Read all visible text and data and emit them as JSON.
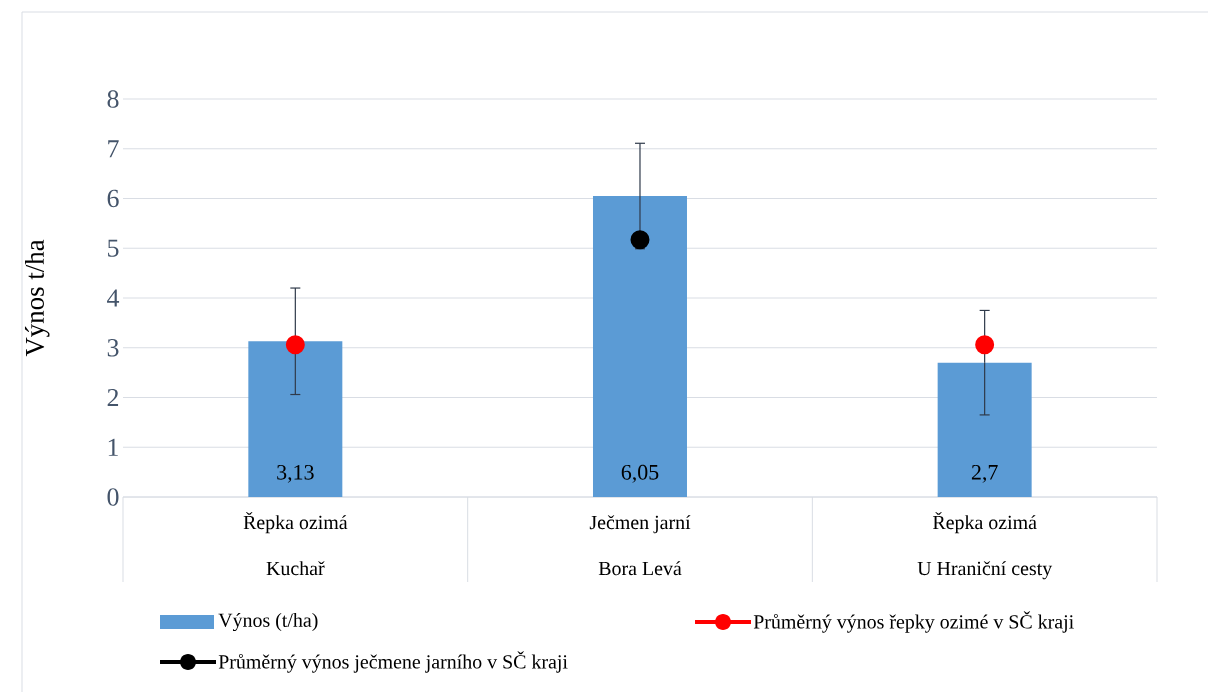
{
  "chart_data": {
    "type": "bar",
    "ylabel": "Výnos t/ha",
    "categories": [
      "Řepka ozimá",
      "Ječmen jarní",
      "Řepka ozimá"
    ],
    "annotations": [
      "Kuchař",
      "Bora Levá",
      "U Hraniční cesty"
    ],
    "series": [
      {
        "name": "Výnos (t/ha)",
        "color": "#5b9bd5",
        "values": [
          3.13,
          6.05,
          2.7
        ],
        "errors": [
          1.07,
          1.06,
          1.05
        ],
        "value_labels": [
          "3,13",
          "6,05",
          "2,7"
        ]
      },
      {
        "name": "Průměrný výnos řepky ozimé v SČ kraji",
        "type": "scatter",
        "color": "#ff0000",
        "values": [
          3.06,
          null,
          3.06
        ]
      },
      {
        "name": "Průměrný výnos ječmene jarního v SČ kraji",
        "type": "scatter",
        "color": "#000000",
        "values": [
          null,
          5.17,
          null
        ]
      }
    ],
    "ylim": [
      0,
      8
    ],
    "yticks": [
      0,
      1,
      2,
      3,
      4,
      5,
      6,
      7,
      8
    ],
    "grid": "y",
    "legend": "bottom",
    "marker": "circle",
    "line_style": "solid"
  }
}
